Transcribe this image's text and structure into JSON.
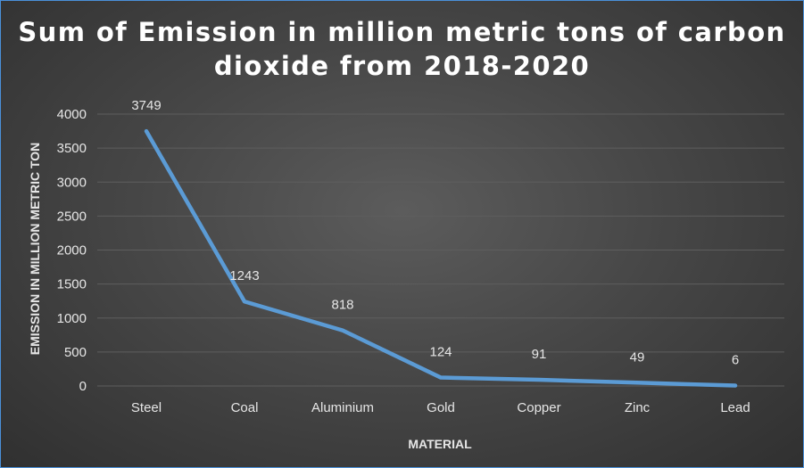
{
  "chart_data": {
    "type": "line",
    "title": "Sum of Emission in million metric tons of carbon dioxide from 2018-2020",
    "xlabel": "MATERIAL",
    "ylabel": "EMISSION IN MILLION METRIC TON",
    "categories": [
      "Steel",
      "Coal",
      "Aluminium",
      "Gold",
      "Copper",
      "Zinc",
      "Lead"
    ],
    "series": [
      {
        "values": [
          3749,
          1243,
          818,
          124,
          91,
          49,
          6
        ]
      }
    ],
    "data_labels": [
      "3749",
      "1243",
      "818",
      "124",
      "91",
      "49",
      "6"
    ],
    "y_ticks": [
      0,
      500,
      1000,
      1500,
      2000,
      2500,
      3000,
      3500,
      4000
    ],
    "ylim": [
      0,
      4000
    ],
    "grid": true,
    "legend": "none",
    "colors": {
      "line": "#5b9bd5",
      "grid": "#5e5e5e",
      "text": "#e6e6e6",
      "background": "#404040",
      "border": "#4a90d9"
    }
  }
}
